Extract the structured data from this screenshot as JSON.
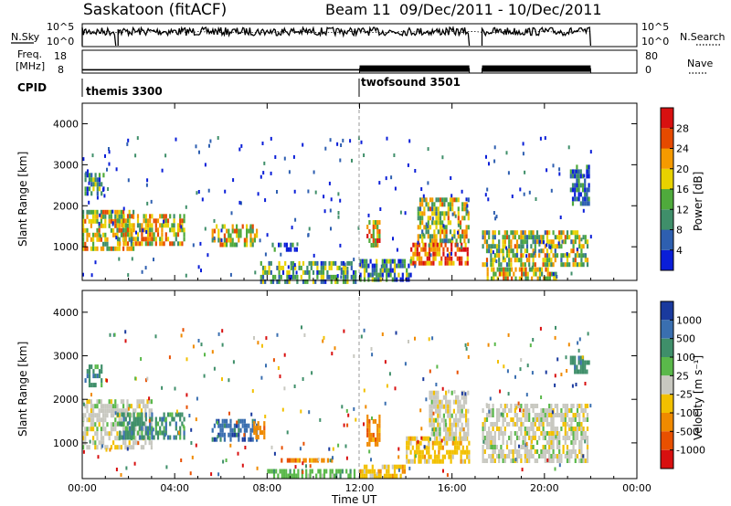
{
  "header": {
    "title": "Saskatoon (fitACF)",
    "beam": "Beam 11",
    "date_range": "09/Dec/2011 - 10/Dec/2011"
  },
  "chart_data": [
    {
      "type": "line",
      "panel": "noise",
      "left_label": "N.Sky",
      "right_label": "N.Search",
      "y_ticks": [
        "10^5",
        "10^0"
      ],
      "right_y_ticks": [
        "10^5",
        "10^0"
      ],
      "style": "solid (N.Sky) / dotted (N.Search)"
    },
    {
      "type": "line",
      "panel": "frequency",
      "left_label_line1": "Freq.",
      "left_label_line2": "[MHz]",
      "right_label": "Nave",
      "y_ticks": [
        "18",
        "8"
      ],
      "right_y_ticks": [
        "80",
        "0"
      ],
      "segments": [
        {
          "x": [
            0.0,
            12.0
          ],
          "freq_mhz": 10.4
        },
        {
          "x": [
            12.0,
            16.75
          ],
          "freq_mhz": 11.6
        },
        {
          "x": [
            17.3,
            22.0
          ],
          "freq_mhz": 11.6
        }
      ]
    },
    {
      "type": "table",
      "panel": "cpid",
      "label": "CPID",
      "programs": [
        {
          "name": "themis 3300",
          "start_ut": 0.0
        },
        {
          "name": "twofsound 3501",
          "start_ut": 12.0
        }
      ]
    },
    {
      "type": "heatmap",
      "panel": "power",
      "ylabel": "Slant Range [km]",
      "y_ticks": [
        1000,
        2000,
        3000,
        4000
      ],
      "ylim": [
        180,
        4500
      ],
      "colorbar_label": "Power [dB]",
      "colorbar_ticks": [
        4,
        8,
        12,
        16,
        20,
        24,
        28
      ],
      "colorbar_colors": [
        "#0a1ed8",
        "#2e5fb0",
        "#3f8f6a",
        "#4faa3c",
        "#e8d200",
        "#f59a00",
        "#e64a00",
        "#d81010"
      ],
      "x_ticks": [
        "00:00",
        "04:00",
        "08:00",
        "12:00",
        "16:00",
        "20:00",
        "00:00"
      ],
      "regions": [
        {
          "t": [
            0.0,
            2.2
          ],
          "r": [
            900,
            1900
          ],
          "level": 0.55
        },
        {
          "t": [
            0.1,
            0.9
          ],
          "r": [
            2300,
            2800
          ],
          "level": 0.3
        },
        {
          "t": [
            1.5,
            4.4
          ],
          "r": [
            1100,
            1800
          ],
          "level": 0.6
        },
        {
          "t": [
            5.6,
            7.6
          ],
          "r": [
            1050,
            1550
          ],
          "level": 0.6
        },
        {
          "t": [
            8.2,
            9.3
          ],
          "r": [
            950,
            1100
          ],
          "level": 0.2
        },
        {
          "t": [
            7.7,
            11.8
          ],
          "r": [
            200,
            650
          ],
          "level": 0.35
        },
        {
          "t": [
            12.3,
            12.9
          ],
          "r": [
            1000,
            1650
          ],
          "level": 0.65
        },
        {
          "t": [
            14.5,
            16.7
          ],
          "r": [
            1100,
            2200
          ],
          "level": 0.5
        },
        {
          "t": [
            14.2,
            16.7
          ],
          "r": [
            550,
            1100
          ],
          "level": 0.8
        },
        {
          "t": [
            12.0,
            14.2
          ],
          "r": [
            200,
            700
          ],
          "level": 0.3
        },
        {
          "t": [
            17.3,
            21.9
          ],
          "r": [
            600,
            1400
          ],
          "level": 0.5
        },
        {
          "t": [
            17.5,
            20.5
          ],
          "r": [
            250,
            500
          ],
          "level": 0.55
        },
        {
          "t": [
            21.1,
            21.9
          ],
          "r": [
            2000,
            3000
          ],
          "level": 0.2
        }
      ]
    },
    {
      "type": "heatmap",
      "panel": "velocity",
      "ylabel": "Slant Range [km]",
      "y_ticks": [
        1000,
        2000,
        3000,
        4000
      ],
      "ylim": [
        180,
        4500
      ],
      "colorbar_label": "Velocity [m s⁻¹]",
      "colorbar_ticks": [
        1000,
        500,
        100,
        25,
        -25,
        -100,
        -500,
        -1000
      ],
      "colorbar_colors": [
        "#1a3a9e",
        "#3a6fb0",
        "#3f8f6a",
        "#5ab84a",
        "#c8c8c0",
        "#f2c000",
        "#f08a00",
        "#e85000",
        "#d81010"
      ],
      "x_ticks": [
        "00:00",
        "04:00",
        "08:00",
        "12:00",
        "16:00",
        "20:00",
        "00:00"
      ],
      "xlabel": "Time UT",
      "regions": [
        {
          "t": [
            0.0,
            3.0
          ],
          "r": [
            900,
            2000
          ],
          "cls": 4
        },
        {
          "t": [
            0.1,
            0.8
          ],
          "r": [
            2300,
            2800
          ],
          "cls": 2
        },
        {
          "t": [
            1.5,
            4.4
          ],
          "r": [
            1100,
            1700
          ],
          "cls": 2
        },
        {
          "t": [
            5.6,
            7.6
          ],
          "r": [
            1050,
            1550
          ],
          "cls": 1
        },
        {
          "t": [
            7.4,
            7.9
          ],
          "r": [
            1100,
            1500
          ],
          "cls": 6
        },
        {
          "t": [
            8.5,
            10.8
          ],
          "r": [
            550,
            650
          ],
          "cls": 6
        },
        {
          "t": [
            8.0,
            11.8
          ],
          "r": [
            200,
            400
          ],
          "cls": 3
        },
        {
          "t": [
            12.3,
            12.9
          ],
          "r": [
            1000,
            1650
          ],
          "cls": 6
        },
        {
          "t": [
            14.0,
            16.7
          ],
          "r": [
            550,
            1150
          ],
          "cls": 5
        },
        {
          "t": [
            12.0,
            14.0
          ],
          "r": [
            200,
            500
          ],
          "cls": 5
        },
        {
          "t": [
            15.0,
            16.7
          ],
          "r": [
            1100,
            2200
          ],
          "cls": 4
        },
        {
          "t": [
            17.3,
            21.9
          ],
          "r": [
            600,
            1900
          ],
          "cls": 4
        },
        {
          "t": [
            21.1,
            21.9
          ],
          "r": [
            2600,
            3000
          ],
          "cls": 2
        }
      ]
    }
  ]
}
